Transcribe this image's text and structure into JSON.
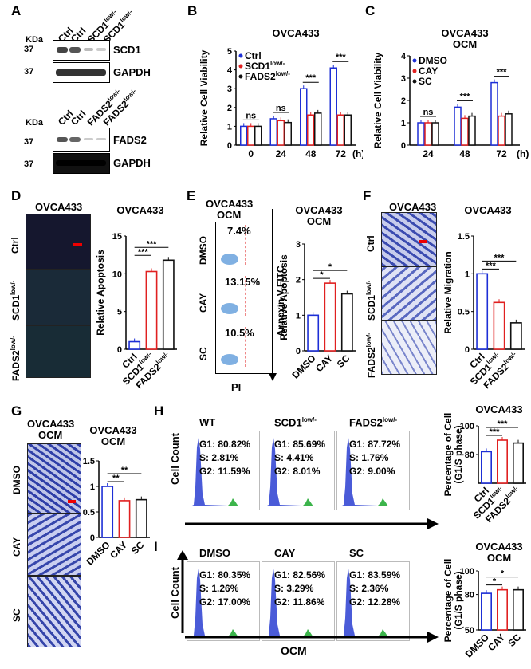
{
  "panels": {
    "A": "A",
    "B": "B",
    "C": "C",
    "D": "D",
    "E": "E",
    "F": "F",
    "G": "G",
    "H": "H",
    "I": "I"
  },
  "panelA": {
    "kda": "KDa",
    "lanes1": [
      "Ctrl",
      "Ctrl",
      "SCD1",
      "SCD1"
    ],
    "lanes1_sup": "low/-",
    "marker": "37",
    "labels1": [
      "SCD1",
      "GAPDH"
    ],
    "lanes2": [
      "Ctrl",
      "Ctrl",
      "FADS2",
      "FADS2"
    ],
    "lanes2_sup": "low/-",
    "labels2": [
      "FADS2",
      "GAPDH"
    ]
  },
  "chart_data": [
    {
      "id": "B",
      "type": "bar",
      "title": "OVCA433",
      "ylabel": "Relative Cell Viability",
      "xlabel_unit": "(h)",
      "categories": [
        "0",
        "24",
        "48",
        "72"
      ],
      "ylim": [
        0,
        5
      ],
      "series": [
        {
          "name": "Ctrl",
          "values": [
            1,
            1.4,
            3,
            4.1
          ]
        },
        {
          "name": "SCD1 low/-",
          "values": [
            1,
            1.3,
            1.6,
            1.6
          ]
        },
        {
          "name": "FADS2 low/-",
          "values": [
            1,
            1.2,
            1.7,
            1.6
          ]
        }
      ],
      "annotations": [
        "ns",
        "ns",
        "***",
        "***"
      ],
      "legend": [
        "Ctrl",
        "SCD1",
        "FADS2"
      ],
      "legend_sup": "low/-"
    },
    {
      "id": "C",
      "type": "bar",
      "title": "OVCA433",
      "subtitle": "OCM",
      "ylabel": "Relative Cell Viability",
      "xlabel_unit": "(h)",
      "categories": [
        "24",
        "48",
        "72"
      ],
      "ylim": [
        0,
        4
      ],
      "series": [
        {
          "name": "DMSO",
          "values": [
            1,
            1.7,
            2.8
          ]
        },
        {
          "name": "CAY",
          "values": [
            1,
            1.2,
            1.3
          ]
        },
        {
          "name": "SC",
          "values": [
            1,
            1.3,
            1.4
          ]
        }
      ],
      "annotations": [
        "ns",
        "***",
        "***"
      ],
      "legend": [
        "DMSO",
        "CAY",
        "SC"
      ]
    },
    {
      "id": "D",
      "type": "bar",
      "title": "OVCA433",
      "ylabel": "Relative Apoptosis",
      "categories": [
        "Ctrl",
        "SCD1",
        "FADS2"
      ],
      "cat_sup": "low/-",
      "ylim": [
        0,
        15
      ],
      "values": [
        1,
        10.3,
        11.8
      ],
      "annotations": [
        "***",
        "***"
      ]
    },
    {
      "id": "E",
      "type": "bar",
      "title": "OVCA433",
      "subtitle": "OCM",
      "ylabel": "Relative Apoptosis",
      "categories": [
        "DMSO",
        "CAY",
        "SC"
      ],
      "ylim": [
        0,
        3
      ],
      "values": [
        1,
        1.9,
        1.6
      ],
      "annotations": [
        "*",
        "*"
      ]
    },
    {
      "id": "F",
      "type": "bar",
      "title": "OVCA433",
      "ylabel": "Relative Migration",
      "categories": [
        "Ctrl",
        "SCD1",
        "FADS2"
      ],
      "cat_sup": "low/-",
      "ylim": [
        0,
        1.5
      ],
      "values": [
        1,
        0.62,
        0.35
      ],
      "annotations": [
        "***",
        "***"
      ]
    },
    {
      "id": "G",
      "type": "bar",
      "title": "OVCA433",
      "subtitle": "OCM",
      "ylabel": "Relative Migration",
      "categories": [
        "DMSO",
        "CAY",
        "SC"
      ],
      "ylim": [
        0,
        1.5
      ],
      "values": [
        1,
        0.72,
        0.74
      ],
      "annotations": [
        "**",
        "**"
      ]
    },
    {
      "id": "H",
      "type": "bar",
      "title": "OVCA433",
      "ylabel": "Percentage of Cell",
      "ylabel2": "(G1/S phase)",
      "categories": [
        "Ctrl",
        "SCD1",
        "FADS2"
      ],
      "cat_sup": "low/-",
      "ylim": [
        60,
        100
      ],
      "yticks": [
        80,
        100
      ],
      "values": [
        82,
        90,
        88
      ],
      "annotations": [
        "***",
        "***"
      ]
    },
    {
      "id": "I",
      "type": "bar",
      "title": "OVCA433",
      "subtitle": "OCM",
      "ylabel": "Percentage of Cell",
      "ylabel2": "(G1/S phase)",
      "categories": [
        "DMSO",
        "CAY",
        "SC"
      ],
      "ylim": [
        50,
        100
      ],
      "yticks": [
        50,
        80,
        100
      ],
      "values": [
        81,
        84,
        84
      ],
      "annotations": [
        "*",
        "*"
      ]
    }
  ],
  "panelD": {
    "title": "OVCA433",
    "rows": [
      "Ctrl",
      "SCD1",
      "FADS2"
    ],
    "sup": "low/-"
  },
  "panelE": {
    "title": "OVCA433",
    "subtitle": "OCM",
    "rows": [
      "DMSO",
      "CAY",
      "SC"
    ],
    "pct": [
      "7.4%",
      "13.15%",
      "10.5%"
    ],
    "xlabel": "PI",
    "ylabel": "Annexin V-FITC"
  },
  "panelF": {
    "title": "OVCA433",
    "rows": [
      "Ctrl",
      "SCD1",
      "FADS2"
    ],
    "sup": "low/-"
  },
  "panelG": {
    "title": "OVCA433",
    "subtitle": "OCM",
    "rows": [
      "DMSO",
      "CAY",
      "SC"
    ]
  },
  "panelH": {
    "ylabel": "Cell Count",
    "groups": [
      {
        "name": "WT",
        "sup": "",
        "g1": "G1: 80.82%",
        "s": "S:   2.81%",
        "g2": "G2: 11.59%"
      },
      {
        "name": "SCD1",
        "sup": "low/-",
        "g1": "G1: 85.69%",
        "s": "S:   4.41%",
        "g2": "G2: 8.01%"
      },
      {
        "name": "FADS2",
        "sup": "low/-",
        "g1": "G1: 87.72%",
        "s": "S:   1.76%",
        "g2": "G2: 9.00%"
      }
    ]
  },
  "panelI": {
    "ylabel": "Cell Count",
    "xlabel": "OCM",
    "groups": [
      {
        "name": "DMSO",
        "g1": "G1: 80.35%",
        "s": "S:   1.26%",
        "g2": "G2: 17.00%"
      },
      {
        "name": "CAY",
        "g1": "G1: 82.56%",
        "s": "S:   3.29%",
        "g2": "G2: 11.86%"
      },
      {
        "name": "SC",
        "g1": "G1: 83.59%",
        "s": "S:   2.36%",
        "g2": "G2: 12.28%"
      }
    ]
  },
  "colors": {
    "blue": "#1d2fd6",
    "red": "#e02020",
    "black": "#111111",
    "stain": "#3b4bb0"
  }
}
